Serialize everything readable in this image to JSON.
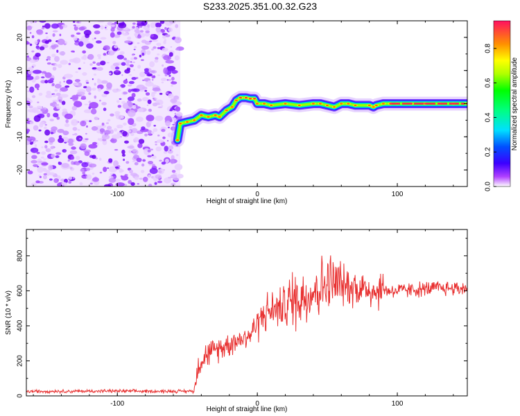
{
  "title": "S233.2025.351.00.32.G23",
  "chart_data": [
    {
      "type": "heatmap",
      "xlabel": "Height of straight line (km)",
      "ylabel": "Frequency (Hz)",
      "xlim": [
        -165,
        150
      ],
      "ylim": [
        -25,
        25
      ],
      "xticks": [
        -100,
        0,
        100
      ],
      "yticks": [
        -20,
        -10,
        0,
        10,
        20
      ],
      "noise_region_x": [
        -165,
        -55
      ],
      "ridge_x": [
        -57,
        -55,
        -50,
        -45,
        -40,
        -35,
        -30,
        -27,
        -22,
        -18,
        -15,
        -12,
        -8,
        -5,
        -2,
        0,
        5,
        10,
        20,
        30,
        40,
        45,
        50,
        55,
        60,
        65,
        70,
        80,
        83,
        85,
        90,
        95,
        100,
        110,
        120,
        130,
        140,
        150
      ],
      "ridge_freq": [
        -11,
        -6,
        -5.5,
        -5,
        -3.5,
        -4,
        -3.5,
        -4,
        -2,
        -1,
        1,
        1.8,
        1.8,
        1.5,
        1.5,
        0,
        0,
        -0.5,
        0,
        -0.5,
        0,
        0,
        -0.5,
        -1,
        0,
        0,
        -0.5,
        -0.5,
        -1,
        -0.5,
        0,
        0,
        0,
        0,
        0,
        0,
        0,
        0
      ],
      "colorbar": {
        "label": "Normalized spectral amplitude",
        "ticks": [
          "0.0",
          "0.2",
          "0.4",
          "0.6",
          "0.8"
        ],
        "range": [
          0,
          0.96
        ]
      }
    },
    {
      "type": "line",
      "xlabel": "Height of straight line (km)",
      "ylabel": "SNR (10 * v/v)",
      "xlim": [
        -165,
        150
      ],
      "ylim": [
        0,
        950
      ],
      "xticks": [
        -100,
        0,
        100
      ],
      "yticks": [
        0,
        200,
        400,
        600,
        800
      ],
      "line_color": "#e83030",
      "series": [
        {
          "name": "SNR",
          "x": [
            -165,
            -150,
            -130,
            -110,
            -90,
            -70,
            -55,
            -45,
            -43,
            -40,
            -35,
            -30,
            -25,
            -20,
            -15,
            -10,
            -5,
            0,
            5,
            10,
            15,
            20,
            25,
            30,
            35,
            40,
            45,
            50,
            55,
            60,
            65,
            70,
            75,
            80,
            85,
            90,
            95,
            100,
            110,
            120,
            130,
            140,
            150
          ],
          "y": [
            25,
            27,
            26,
            28,
            27,
            26,
            27,
            27,
            150,
            210,
            240,
            260,
            280,
            300,
            320,
            330,
            350,
            420,
            470,
            490,
            500,
            520,
            545,
            560,
            580,
            600,
            620,
            640,
            640,
            630,
            630,
            620,
            615,
            610,
            600,
            610,
            600,
            600,
            605,
            610,
            615,
            615,
            615
          ]
        }
      ]
    }
  ]
}
